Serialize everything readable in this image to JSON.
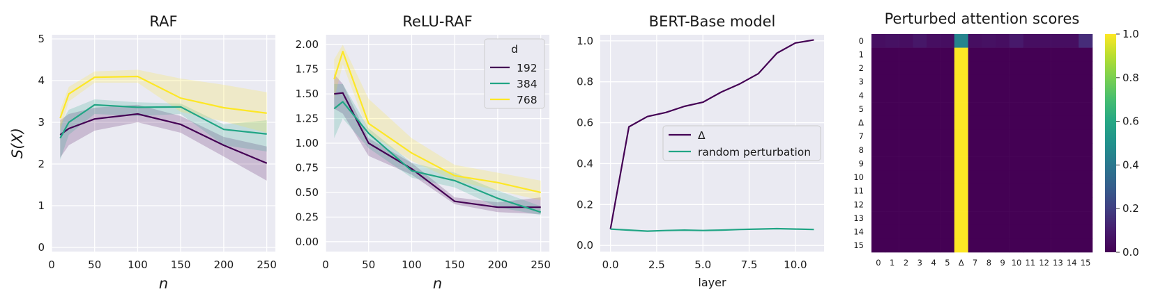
{
  "figure": {
    "chart_data": [
      {
        "type": "line",
        "title": "RAF",
        "xlabel": "n",
        "ylabel": "S(X)",
        "xlim": [
          0,
          260
        ],
        "ylim": [
          -0.1,
          5.1
        ],
        "xticks": [
          0,
          50,
          100,
          150,
          200,
          250
        ],
        "yticks": [
          0,
          1,
          2,
          3,
          4,
          5
        ],
        "grid": true,
        "x": [
          10,
          20,
          50,
          100,
          150,
          200,
          250
        ],
        "series": [
          {
            "name": "192",
            "color": "#440154",
            "values": [
              2.7,
              2.85,
              3.08,
              3.2,
              2.95,
              2.45,
              2.02
            ],
            "lower": [
              2.15,
              2.45,
              2.8,
              3.0,
              2.75,
              2.18,
              1.6
            ],
            "upper": [
              3.05,
              3.2,
              3.35,
              3.42,
              3.15,
              2.65,
              2.42
            ]
          },
          {
            "name": "384",
            "color": "#21a585",
            "values": [
              2.62,
              3.0,
              3.42,
              3.36,
              3.37,
              2.83,
              2.72
            ],
            "lower": [
              2.1,
              2.7,
              3.2,
              3.15,
              3.2,
              2.45,
              2.3
            ],
            "upper": [
              2.95,
              3.3,
              3.55,
              3.48,
              3.45,
              2.95,
              3.05
            ]
          },
          {
            "name": "768",
            "color": "#fde725",
            "values": [
              3.1,
              3.68,
              4.08,
              4.1,
              3.58,
              3.35,
              3.22
            ],
            "lower": [
              2.8,
              3.5,
              3.95,
              3.95,
              3.25,
              3.02,
              2.75
            ],
            "upper": [
              3.3,
              3.85,
              4.22,
              4.26,
              4.05,
              3.9,
              3.72
            ]
          }
        ]
      },
      {
        "type": "line",
        "title": "ReLU-RAF",
        "xlabel": "n",
        "ylabel": "",
        "xlim": [
          0,
          260
        ],
        "ylim": [
          -0.1,
          2.1
        ],
        "xticks": [
          0,
          50,
          100,
          150,
          200,
          250
        ],
        "yticks": [
          0.0,
          0.25,
          0.5,
          0.75,
          1.0,
          1.25,
          1.5,
          1.75,
          2.0
        ],
        "ytick_labels": [
          "0.00",
          "0.25",
          "0.50",
          "0.75",
          "1.00",
          "1.25",
          "1.50",
          "1.75",
          "2.00"
        ],
        "grid": true,
        "legend": {
          "title": "d",
          "placement": "top-right"
        },
        "x": [
          10,
          20,
          50,
          100,
          150,
          200,
          250
        ],
        "series": [
          {
            "name": "192",
            "color": "#440154",
            "values": [
              1.5,
              1.51,
              1.0,
              0.74,
              0.41,
              0.35,
              0.35
            ],
            "lower": [
              1.35,
              1.3,
              0.87,
              0.68,
              0.38,
              0.3,
              0.28
            ],
            "upper": [
              1.7,
              1.6,
              1.05,
              0.8,
              0.45,
              0.4,
              0.45
            ]
          },
          {
            "name": "384",
            "color": "#21a585",
            "values": [
              1.35,
              1.42,
              1.1,
              0.72,
              0.62,
              0.44,
              0.3
            ],
            "lower": [
              1.05,
              1.25,
              0.95,
              0.65,
              0.55,
              0.35,
              0.27
            ],
            "upper": [
              1.6,
              1.6,
              1.15,
              0.8,
              0.7,
              0.52,
              0.36
            ]
          },
          {
            "name": "768",
            "color": "#fde725",
            "values": [
              1.65,
              1.93,
              1.2,
              0.9,
              0.67,
              0.6,
              0.5
            ],
            "lower": [
              1.45,
              1.8,
              1.1,
              0.82,
              0.62,
              0.52,
              0.42
            ],
            "upper": [
              1.85,
              2.0,
              1.45,
              1.05,
              0.78,
              0.7,
              0.62
            ]
          }
        ]
      },
      {
        "type": "line",
        "title": "BERT-Base model",
        "xlabel": "layer",
        "ylabel": "",
        "xlim": [
          -0.55,
          11.55
        ],
        "ylim": [
          -0.03,
          1.03
        ],
        "xticks": [
          0.0,
          2.5,
          5.0,
          7.5,
          10.0
        ],
        "xtick_labels": [
          "0.0",
          "2.5",
          "5.0",
          "7.5",
          "10.0"
        ],
        "yticks": [
          0.0,
          0.2,
          0.4,
          0.6,
          0.8,
          1.0
        ],
        "ytick_labels": [
          "0.0",
          "0.2",
          "0.4",
          "0.6",
          "0.8",
          "1.0"
        ],
        "grid": true,
        "legend": {
          "placement": "center-right"
        },
        "x": [
          0,
          1,
          2,
          3,
          4,
          5,
          6,
          7,
          8,
          9,
          10,
          11
        ],
        "series": [
          {
            "name": "Δ",
            "color": "#440154",
            "values": [
              0.08,
              0.58,
              0.63,
              0.65,
              0.68,
              0.7,
              0.75,
              0.79,
              0.84,
              0.94,
              0.99,
              1.005
            ]
          },
          {
            "name": "random perturbation",
            "color": "#21a585",
            "values": [
              0.08,
              0.075,
              0.07,
              0.073,
              0.075,
              0.073,
              0.075,
              0.078,
              0.08,
              0.082,
              0.08,
              0.078
            ]
          }
        ]
      },
      {
        "type": "heatmap",
        "title": "Perturbed attention scores",
        "xtick_labels": [
          "0",
          "1",
          "2",
          "3",
          "4",
          "5",
          "Δ",
          "7",
          "8",
          "9",
          "10",
          "11",
          "12",
          "13",
          "14",
          "15"
        ],
        "ytick_labels": [
          "0",
          "1",
          "2",
          "3",
          "4",
          "5",
          "Δ",
          "7",
          "8",
          "9",
          "10",
          "11",
          "12",
          "13",
          "14",
          "15"
        ],
        "colorscale": "viridis",
        "vmin": 0.0,
        "vmax": 1.0,
        "colorbar_ticks": [
          0.0,
          0.2,
          0.4,
          0.6,
          0.8,
          1.0
        ],
        "colorbar_tick_labels": [
          "0.0",
          "0.2",
          "0.4",
          "0.6",
          "0.8",
          "1.0"
        ],
        "first_row": [
          0.05,
          0.06,
          0.05,
          0.08,
          0.05,
          0.05,
          0.45,
          0.05,
          0.06,
          0.05,
          0.09,
          0.05,
          0.05,
          0.05,
          0.05,
          0.15
        ],
        "other_rows": {
          "focus_column": 6,
          "focus_value": 1.0,
          "other_value": 0.0
        }
      }
    ]
  }
}
